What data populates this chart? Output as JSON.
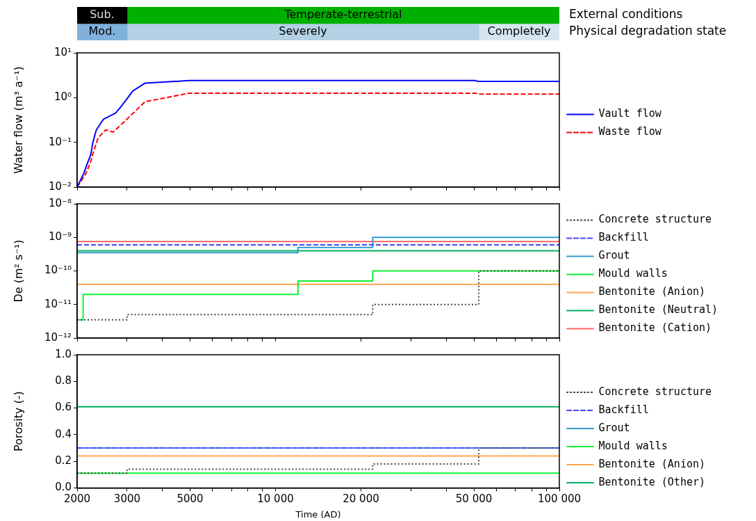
{
  "chart_data": [
    {
      "type": "bar",
      "orientation": "horizontal",
      "categories": [
        "External conditions",
        "Physical degradation state"
      ],
      "xlim": [
        2000,
        100000
      ],
      "log": "x",
      "tick_labels": "y",
      "series": [
        {
          "name": "Sub.",
          "color": "#000000",
          "values": [
            1000,
            null
          ],
          "base": [
            2000,
            null
          ]
        },
        {
          "name": "Temperate-terrestrial",
          "color": "#00b000",
          "values": [
            97000,
            null
          ],
          "base": [
            3000,
            null
          ]
        },
        {
          "name": "Mod.",
          "color": "#80b0dc",
          "values": [
            null,
            1000
          ],
          "base": [
            null,
            2000
          ]
        },
        {
          "name": "Severely",
          "color": "#b3d0e4",
          "values": [
            null,
            49000
          ],
          "base": [
            null,
            3000
          ]
        },
        {
          "name": "Completely",
          "color": "#d6e5ef",
          "values": [
            null,
            48000
          ],
          "base": [
            null,
            52000
          ]
        }
      ]
    },
    {
      "type": "line",
      "ylabel": "Water flow (m³ a⁻¹)",
      "log": "xy",
      "xlim": [
        2000,
        100000
      ],
      "ylim": [
        0.01,
        10
      ],
      "tick_labels": "y",
      "legend": "right",
      "xticks": [
        {
          "value": 2000,
          "label": null
        },
        {
          "value": 3000,
          "label": null
        },
        {
          "value": 4000,
          "label": null
        },
        {
          "value": 5000,
          "label": null
        },
        {
          "value": 6000,
          "label": null
        },
        {
          "value": 7000,
          "label": null
        },
        {
          "value": 8000,
          "label": null
        },
        {
          "value": 9000,
          "label": null
        },
        {
          "value": 10000,
          "label": null
        },
        {
          "value": 20000,
          "label": null
        },
        {
          "value": 30000,
          "label": null
        },
        {
          "value": 40000,
          "label": null
        },
        {
          "value": 50000,
          "label": null
        },
        {
          "value": 60000,
          "label": null
        },
        {
          "value": 70000,
          "label": null
        },
        {
          "value": 80000,
          "label": null
        },
        {
          "value": 90000,
          "label": null
        },
        {
          "value": 100000,
          "label": null
        }
      ],
      "yticks": [
        {
          "value": 0.01,
          "label": "10⁻²"
        },
        {
          "value": 0.1,
          "label": "10⁻¹"
        },
        {
          "value": 1,
          "label": "10⁰"
        },
        {
          "value": 10,
          "label": "10¹"
        }
      ],
      "series": [
        {
          "name": "Vault flow",
          "color": "#0000ff",
          "line_style": "solid",
          "x": [
            2000,
            2109,
            2170,
            2236,
            2268,
            2337,
            2478,
            2730,
            2832,
            3000,
            3140,
            3467,
            4950,
            50800,
            51500,
            100000
          ],
          "values": [
            0.01,
            0.02,
            0.033,
            0.054,
            0.095,
            0.19,
            0.33,
            0.45,
            0.59,
            0.95,
            1.4,
            2.1,
            2.4,
            2.4,
            2.3,
            2.3
          ]
        },
        {
          "name": "Waste flow",
          "color": "#ff0000",
          "line_style": "dashed",
          "x": [
            2000,
            2137,
            2220,
            2290,
            2370,
            2520,
            2680,
            2950,
            3470,
            4950,
            50800,
            51500,
            100000
          ],
          "values": [
            0.01,
            0.019,
            0.033,
            0.065,
            0.125,
            0.19,
            0.17,
            0.3,
            0.81,
            1.25,
            1.25,
            1.2,
            1.2
          ]
        }
      ]
    },
    {
      "type": "step",
      "ylabel": "De (m² s⁻¹)",
      "log": "xy",
      "xlim": [
        2000,
        100000
      ],
      "ylim": [
        1e-12,
        1e-08
      ],
      "tick_labels": "y",
      "legend": "right",
      "xticks": [
        {
          "value": 2000,
          "label": null
        },
        {
          "value": 3000,
          "label": null
        },
        {
          "value": 4000,
          "label": null
        },
        {
          "value": 5000,
          "label": null
        },
        {
          "value": 6000,
          "label": null
        },
        {
          "value": 7000,
          "label": null
        },
        {
          "value": 8000,
          "label": null
        },
        {
          "value": 9000,
          "label": null
        },
        {
          "value": 10000,
          "label": null
        },
        {
          "value": 20000,
          "label": null
        },
        {
          "value": 30000,
          "label": null
        },
        {
          "value": 40000,
          "label": null
        },
        {
          "value": 50000,
          "label": null
        },
        {
          "value": 60000,
          "label": null
        },
        {
          "value": 70000,
          "label": null
        },
        {
          "value": 80000,
          "label": null
        },
        {
          "value": 90000,
          "label": null
        },
        {
          "value": 100000,
          "label": null
        }
      ],
      "yticks": [
        {
          "value": 1e-12,
          "label": "10⁻¹²"
        },
        {
          "value": 1e-11,
          "label": "10⁻¹¹"
        },
        {
          "value": 1e-10,
          "label": "10⁻¹⁰"
        },
        {
          "value": 1e-09,
          "label": "10⁻⁹"
        },
        {
          "value": 1e-08,
          "label": "10⁻⁸"
        }
      ],
      "series": [
        {
          "name": "Concrete structure",
          "color": "#444444",
          "line_style": "dotted",
          "x": [
            2000,
            3000,
            22000,
            52000,
            100000
          ],
          "values": [
            3.5e-12,
            5e-12,
            1e-11,
            1e-10,
            1e-10
          ]
        },
        {
          "name": "Backfill",
          "color": "#4444ff",
          "line_style": "dashed",
          "x": [
            2000,
            100000
          ],
          "values": [
            6e-10,
            6e-10
          ]
        },
        {
          "name": "Grout",
          "color": "#3399cc",
          "line_style": "solid",
          "x": [
            2000,
            12000,
            22000,
            100000
          ],
          "values": [
            3.5e-10,
            5e-10,
            1e-09,
            1e-09
          ]
        },
        {
          "name": "Mould walls",
          "color": "#11ee33",
          "line_style": "solid",
          "x": [
            2000,
            2100,
            12000,
            22000,
            100000
          ],
          "values": [
            3.5e-12,
            2e-11,
            5e-11,
            1e-10,
            1e-10
          ]
        },
        {
          "name": "Bentonite (Anion)",
          "color": "#ffa552",
          "line_style": "solid",
          "x": [
            2000,
            100000
          ],
          "values": [
            4e-11,
            4e-11
          ]
        },
        {
          "name": "Bentonite (Neutral)",
          "color": "#00b060",
          "line_style": "solid",
          "x": [
            2000,
            100000
          ],
          "values": [
            4e-10,
            4e-10
          ]
        },
        {
          "name": "Bentonite (Cation)",
          "color": "#ff6666",
          "line_style": "solid",
          "x": [
            2000,
            100000
          ],
          "values": [
            7.5e-10,
            7.5e-10
          ]
        }
      ]
    },
    {
      "type": "step",
      "xlabel": "Time (AD)",
      "ylabel": "Porosity (-)",
      "log": "x",
      "xlim": [
        2000,
        100000
      ],
      "ylim": [
        0,
        1
      ],
      "legend": "right",
      "xticks": [
        2000,
        3000,
        {
          "value": 4000,
          "label": null
        },
        5000,
        {
          "value": 6000,
          "label": null
        },
        {
          "value": 7000,
          "label": null
        },
        {
          "value": 8000,
          "label": null
        },
        {
          "value": 9000,
          "label": null
        },
        {
          "value": 10000,
          "label": "10 000"
        },
        {
          "value": 20000,
          "label": "20 000"
        },
        {
          "value": 30000,
          "label": null
        },
        {
          "value": 40000,
          "label": null
        },
        {
          "value": 50000,
          "label": "50 000"
        },
        {
          "value": 60000,
          "label": null
        },
        {
          "value": 70000,
          "label": null
        },
        {
          "value": 80000,
          "label": null
        },
        {
          "value": 90000,
          "label": null
        },
        {
          "value": 100000,
          "label": "100 000"
        }
      ],
      "yticks": [
        {
          "value": 0,
          "label": "0.0"
        },
        0.2,
        0.4,
        0.6,
        0.8,
        {
          "value": 1,
          "label": "1.0"
        }
      ],
      "series": [
        {
          "name": "Concrete structure",
          "color": "#444444",
          "line_style": "dotted",
          "x": [
            2000,
            3000,
            22000,
            52000,
            100000
          ],
          "values": [
            0.11,
            0.14,
            0.18,
            0.3,
            0.3
          ]
        },
        {
          "name": "Backfill",
          "color": "#4444ff",
          "line_style": "dashed",
          "x": [
            2000,
            100000
          ],
          "values": [
            0.3,
            0.3
          ]
        },
        {
          "name": "Grout",
          "color": "#3399cc",
          "line_style": "solid",
          "x": [
            2000,
            100000
          ],
          "values": [
            0.3,
            0.3
          ]
        },
        {
          "name": "Mould walls",
          "color": "#11ee33",
          "line_style": "solid",
          "x": [
            2000,
            100000
          ],
          "values": [
            0.11,
            0.11
          ]
        },
        {
          "name": "Bentonite (Anion)",
          "color": "#ffa552",
          "line_style": "solid",
          "x": [
            2000,
            100000
          ],
          "values": [
            0.24,
            0.24
          ]
        },
        {
          "name": "Bentonite (Other)",
          "color": "#00b060",
          "line_style": "solid",
          "x": [
            2000,
            100000
          ],
          "values": [
            0.61,
            0.61
          ]
        }
      ]
    }
  ]
}
